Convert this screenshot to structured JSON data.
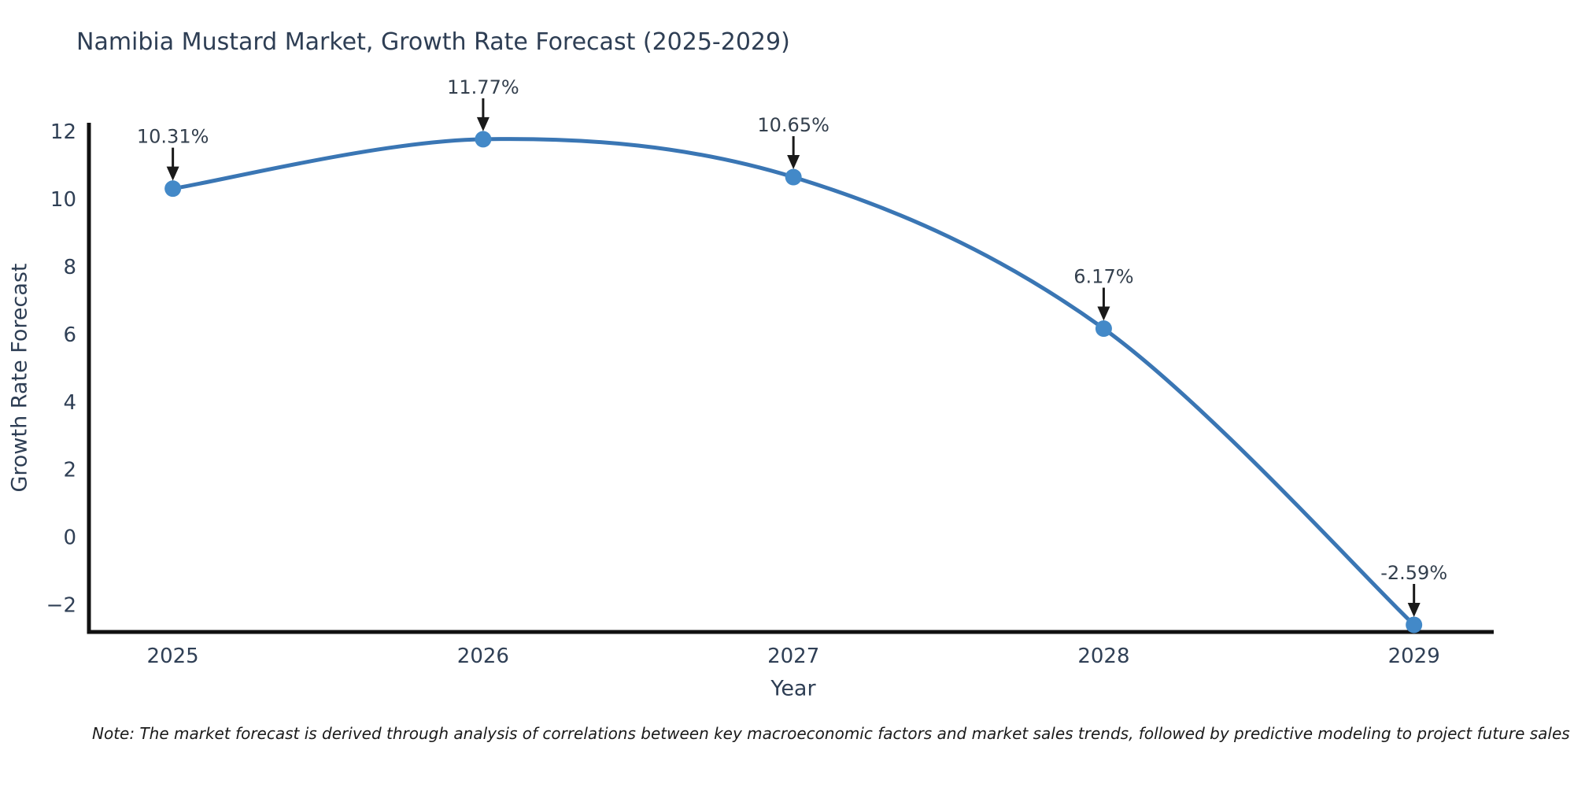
{
  "chart_data": {
    "type": "line",
    "title": "Namibia Mustard Market, Growth Rate Forecast (2025-2029)",
    "xlabel": "Year",
    "ylabel": "Growth Rate Forecast",
    "x": [
      2025,
      2026,
      2027,
      2028,
      2029
    ],
    "values": [
      10.31,
      11.77,
      10.65,
      6.17,
      -2.59
    ],
    "point_labels": [
      "10.31%",
      "11.77%",
      "10.65%",
      "6.17%",
      "-2.59%"
    ],
    "xtick_labels": [
      "2025",
      "2026",
      "2027",
      "2028",
      "2029"
    ],
    "ytick_values": [
      12,
      10,
      8,
      6,
      4,
      2,
      0,
      -2
    ],
    "ytick_labels": [
      "12",
      "10",
      "8",
      "6",
      "4",
      "2",
      "0",
      "−2"
    ],
    "xlim": [
      2024.727,
      2029.257
    ],
    "ylim": [
      -2.8,
      12.21
    ],
    "grid": false,
    "legend": "none",
    "smooth": true,
    "line_color": "#3a76b4",
    "marker_color": "#4389c8",
    "arrow_color": "#1a1a1a",
    "axis_color": "#111111",
    "tick_color": "#2f3f55",
    "annotation_color": "#333f4d"
  },
  "note": {
    "text": "Note: The market forecast is derived through analysis of correlations between key macroeconomic factors and market sales trends, followed by predictive modeling to project future sales"
  }
}
